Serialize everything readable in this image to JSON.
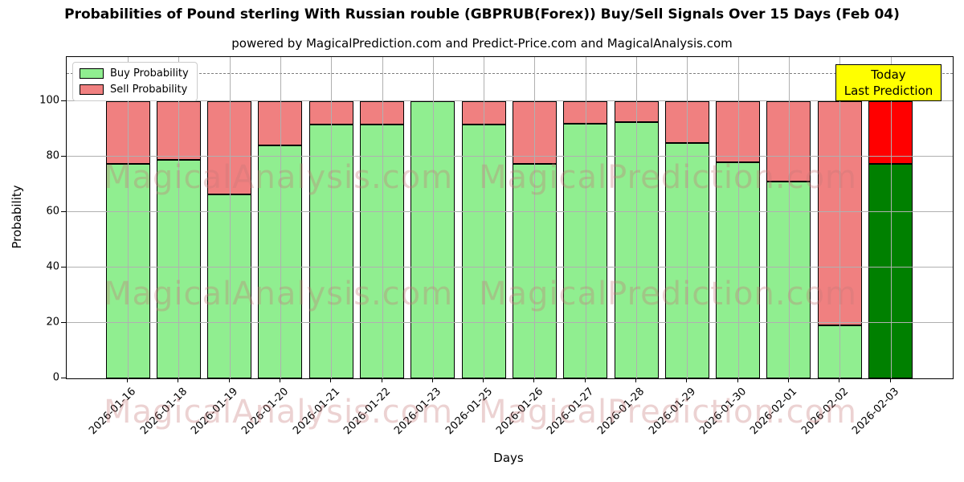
{
  "title": "Probabilities of Pound sterling With Russian rouble (GBPRUB(Forex)) Buy/Sell Signals Over 15 Days (Feb 04)",
  "subtitle": "powered by MagicalPrediction.com and Predict-Price.com and MagicalAnalysis.com",
  "legend": {
    "buy_label": "Buy Probability",
    "sell_label": "Sell Probability"
  },
  "today_box": {
    "line1": "Today",
    "line2": "Last Prediction"
  },
  "axes": {
    "xlabel": "Days",
    "ylabel": "Probability",
    "yticks": [
      0,
      20,
      40,
      60,
      80,
      100
    ],
    "ylim": [
      0,
      116
    ],
    "dashed_line_y": 110,
    "grid": "on"
  },
  "watermarks": {
    "left_text": "MagicalAnalysis.com",
    "right_text": "MagicalPrediction.com",
    "row_count": 3
  },
  "colors": {
    "buy": "#90EE90",
    "sell": "#F08080",
    "today_buy": "#008000",
    "today_sell": "#FF0000",
    "bar_edge": "#000000",
    "today_box_bg": "#FFFF00",
    "grid": "#b0b0b0",
    "dashed_line": "#7f7f7f",
    "watermark": "rgba(197,118,118,0.33)"
  },
  "chart_data": {
    "type": "bar",
    "stacked": true,
    "title": "Probabilities of Pound sterling With Russian rouble (GBPRUB(Forex)) Buy/Sell Signals Over 15 Days (Feb 04)",
    "xlabel": "Days",
    "ylabel": "Probability",
    "ylim": [
      0,
      116
    ],
    "legend_position": "upper left",
    "categories": [
      "2026-01-16",
      "2026-01-18",
      "2026-01-19",
      "2026-01-20",
      "2026-01-21",
      "2026-01-22",
      "2026-01-23",
      "2026-01-25",
      "2026-01-26",
      "2026-01-27",
      "2026-01-28",
      "2026-01-29",
      "2026-01-30",
      "2026-02-01",
      "2026-02-02",
      "2026-02-03"
    ],
    "series": [
      {
        "name": "Buy Probability",
        "values": [
          77.5,
          79,
          66.5,
          84,
          91.5,
          91.5,
          100,
          91.5,
          77.5,
          92,
          92.5,
          85,
          78,
          71,
          19,
          77.5
        ]
      },
      {
        "name": "Sell Probability",
        "values": [
          22.5,
          21,
          33.5,
          16,
          8.5,
          8.5,
          0,
          8.5,
          22.5,
          8,
          7.5,
          15,
          22,
          29,
          81,
          22.5
        ]
      }
    ],
    "today_index": 15,
    "annotation_line_y": 110
  }
}
